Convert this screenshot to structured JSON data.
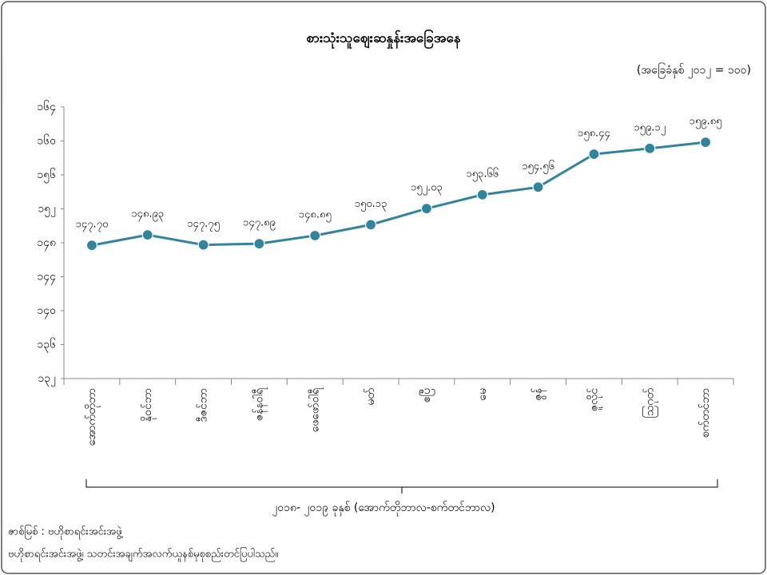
{
  "chart_data": {
    "type": "line",
    "title": "စားသုံးသူဈေးဆနှုန်းအခြေအနေ",
    "subtitle": "(အခြေခံနှစ် ၂၀၁၂ = ၁၀၀)",
    "x_axis_label": "၂၀၁၈- ၂၀၁၉ ခုနှစ် (အောက်တိုဘာလ-စက်တင်ဘာလ)",
    "categories": [
      "အောက်တိုဘာ",
      "နိုဝင်ဘာ",
      "ဒီဇင်ဘာ",
      "ဇန်နဝါရီ",
      "ဖေဖော်ဝါရီ",
      "မတ်",
      "ဧပြီ",
      "မေ",
      "ဇွန်",
      "ဇူလိုင်",
      "ဩဂုတ်",
      "စက်တင်ဘာ"
    ],
    "values": [
      147.7,
      148.93,
      147.75,
      147.89,
      148.85,
      150.13,
      152.03,
      153.66,
      154.56,
      158.44,
      159.12,
      159.85
    ],
    "value_labels": [
      "၁၄၇.၇၀",
      "၁၄၈.၉၃",
      "၁၄၇.၇၅",
      "၁၄၇.၈၉",
      "၁၄၈.၈၅",
      "၁၅၀.၁၃",
      "၁၅၂.၀၃",
      "၁၅၃.၆၆",
      "၁၅၄.၅၆",
      "၁၅၈.၄၄",
      "၁၅၉.၁၂",
      "၁၅၉.၈၅"
    ],
    "color": "#31849b",
    "ylim": [
      132,
      164
    ],
    "yticks": [
      {
        "value": 132,
        "label": "၁၃၂"
      },
      {
        "value": 136,
        "label": "၁၃၆"
      },
      {
        "value": 140,
        "label": "၁၄၀"
      },
      {
        "value": 144,
        "label": "၁၄၄"
      },
      {
        "value": 148,
        "label": "၁၄၈"
      },
      {
        "value": 152,
        "label": "၁၅၂"
      },
      {
        "value": 156,
        "label": "၁၅၆"
      },
      {
        "value": 160,
        "label": "၁၆၀"
      },
      {
        "value": 164,
        "label": "၁၆၄"
      }
    ],
    "grid": false
  },
  "source": "ဇာစ်မြစ် : ဗဟိုစာရင်းအင်းအဖွဲ့",
  "note": "ဗဟိုစာရင်းအင်းအဖွဲ့၊ သတင်းအချက်အလက်ယူနစ်မှစုစည်းတင်ပြပါသည်။"
}
